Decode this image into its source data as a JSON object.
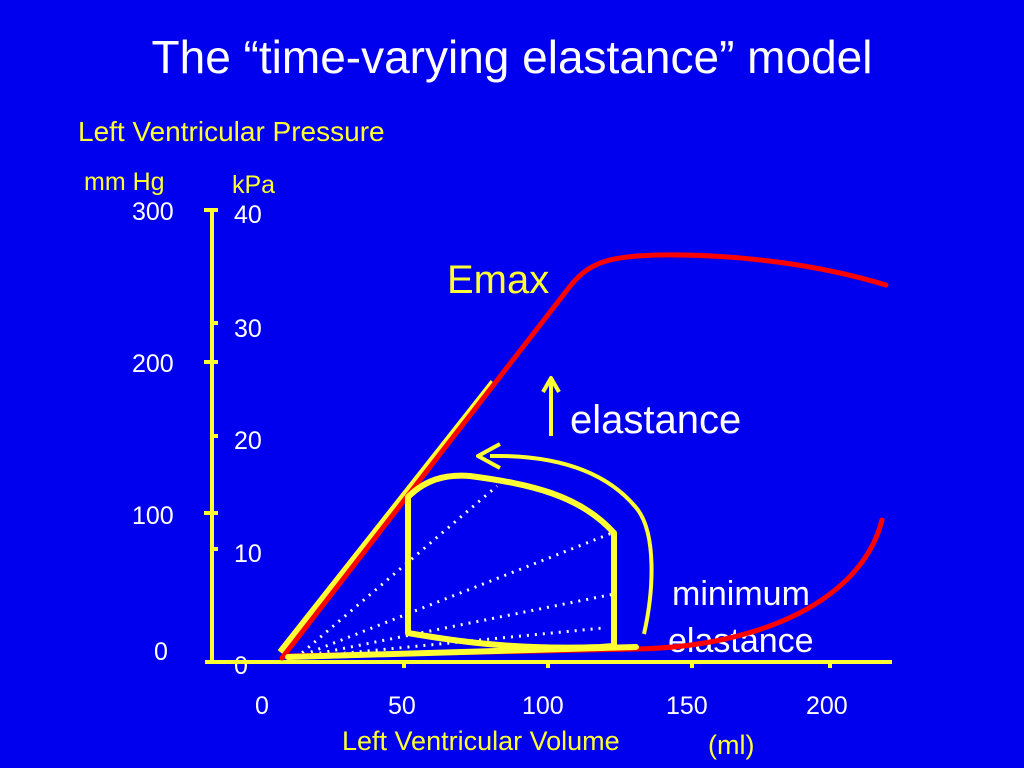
{
  "title": "The “time-varying elastance” model",
  "y_axis": {
    "label": "Left Ventricular Pressure",
    "unit_left": "mm Hg",
    "unit_right": "kPa",
    "ticks_mmhg": [
      "300",
      "200",
      "100",
      "0"
    ],
    "ticks_kpa": [
      "40",
      "30",
      "20",
      "10",
      "0"
    ]
  },
  "x_axis": {
    "label": "Left Ventricular Volume",
    "unit": "(ml)",
    "ticks": [
      "0",
      "50",
      "100",
      "150",
      "200"
    ]
  },
  "annotations": {
    "emax": "Emax",
    "elastance": "elastance",
    "minimum_line1": "minimum",
    "minimum_line2": "elastance"
  },
  "colors": {
    "background": "#0000ee",
    "axis": "#ffff33",
    "curve": "#ff0000",
    "loop": "#ffff33",
    "text": "#ffffff"
  }
}
